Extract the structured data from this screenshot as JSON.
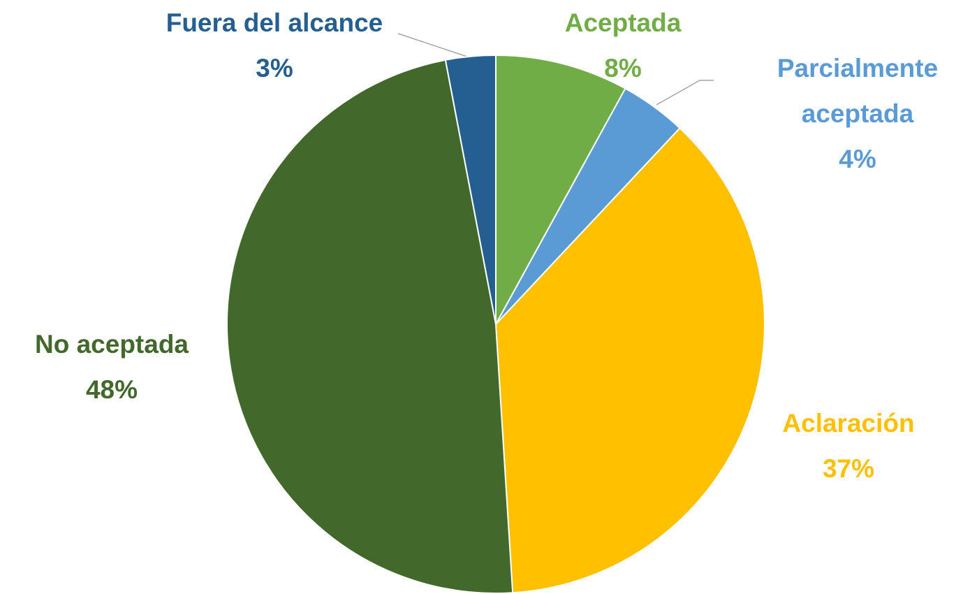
{
  "chart_data": {
    "type": "pie",
    "categories": [
      "Aceptada",
      "Parcialmente aceptada",
      "Aclaración",
      "No aceptada",
      "Fuera del alcance"
    ],
    "values": [
      8,
      4,
      37,
      48,
      3
    ],
    "value_labels": [
      "8%",
      "4%",
      "37%",
      "48%",
      "3%"
    ],
    "colors": [
      "#70ad47",
      "#5b9bd5",
      "#ffc000",
      "#43682b",
      "#255e91"
    ]
  }
}
